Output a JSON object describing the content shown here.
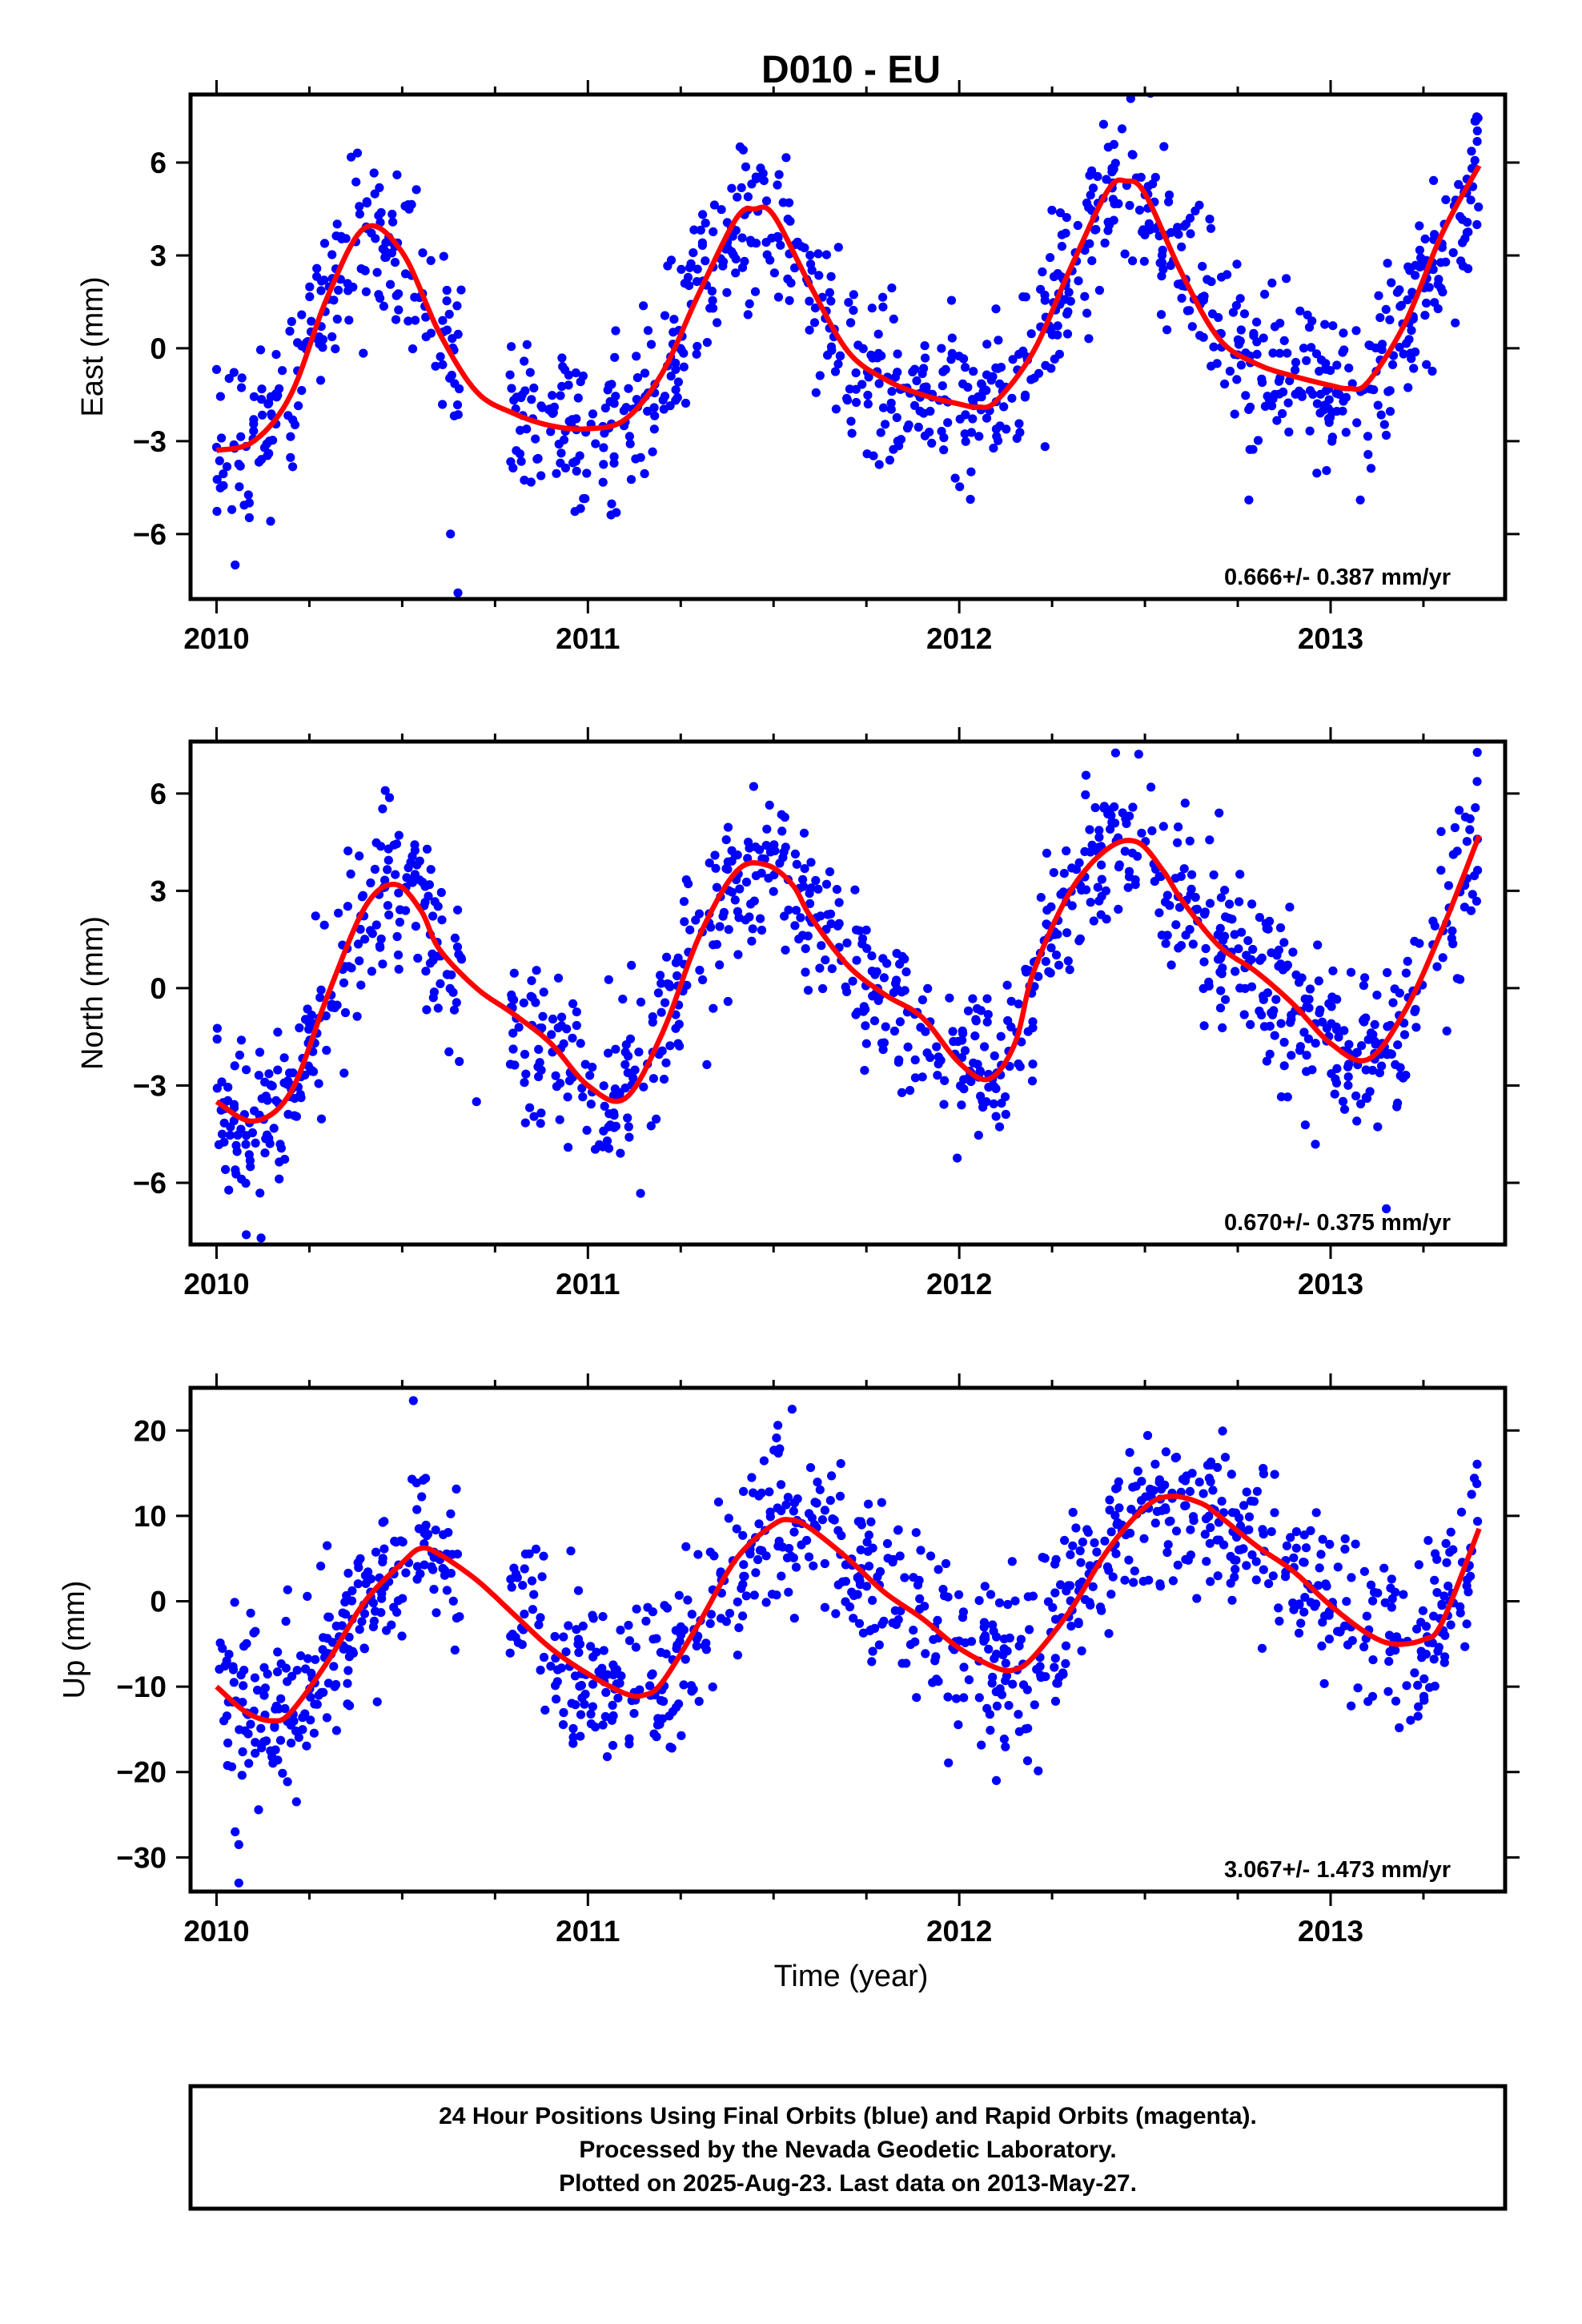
{
  "title": "D010 - EU",
  "colors": {
    "final_points": "#0000ff",
    "fit_line": "#ff0000",
    "frame": "#000000"
  },
  "xlabel": "Time (year)",
  "footer": {
    "line1": "24 Hour Positions Using Final Orbits (blue) and Rapid Orbits (magenta).",
    "line2": "Processed by the Nevada Geodetic Laboratory.",
    "line3": "Plotted on 2025-Aug-23. Last data on 2013-May-27."
  },
  "chart_data": [
    {
      "type": "scatter",
      "ylabel": "East (mm)",
      "annotation": "0.666+/- 0.387 mm/yr",
      "xlim": [
        2009.93,
        2013.47
      ],
      "ylim": [
        -8.1,
        8.2
      ],
      "xticks": [
        2010,
        2011,
        2012,
        2013
      ],
      "xtick_labels": [
        "2010",
        "2011",
        "2012",
        "2013"
      ],
      "yticks": [
        -6,
        -3,
        0,
        3,
        6
      ],
      "ytick_labels": [
        "−6",
        "−3",
        "0",
        "3",
        "6"
      ],
      "fit_line": {
        "x": [
          2010.0,
          2010.1,
          2010.2,
          2010.3,
          2010.4,
          2010.5,
          2010.6,
          2010.7,
          2010.8,
          2010.9,
          2011.0,
          2011.1,
          2011.2,
          2011.3,
          2011.4,
          2011.45,
          2011.5,
          2011.6,
          2011.7,
          2011.8,
          2011.9,
          2012.0,
          2012.05,
          2012.1,
          2012.2,
          2012.3,
          2012.4,
          2012.45,
          2012.5,
          2012.6,
          2012.7,
          2012.8,
          2012.9,
          2013.0,
          2013.05,
          2013.1,
          2013.2,
          2013.3,
          2013.4
        ],
        "y": [
          -3.3,
          -3.0,
          -1.5,
          1.7,
          3.9,
          3.1,
          0.5,
          -1.4,
          -2.1,
          -2.5,
          -2.6,
          -2.3,
          -0.8,
          1.8,
          4.2,
          4.5,
          4.3,
          2.0,
          -0.1,
          -1.0,
          -1.5,
          -1.8,
          -1.9,
          -1.7,
          -0.1,
          2.6,
          5.1,
          5.4,
          5.0,
          2.4,
          0.3,
          -0.5,
          -0.9,
          -1.2,
          -1.3,
          -1.1,
          0.8,
          3.7,
          5.9
        ]
      },
      "scatter": {
        "seed": 11,
        "count": 1100,
        "noise": 1.3,
        "outliers": [
          {
            "x": 2010.65,
            "y": -7.9
          },
          {
            "x": 2010.63,
            "y": -6.0
          },
          {
            "x": 2012.78,
            "y": -4.9
          },
          {
            "x": 2013.08,
            "y": -4.9
          },
          {
            "x": 2010.05,
            "y": -7.0
          }
        ]
      }
    },
    {
      "type": "scatter",
      "ylabel": "North (mm)",
      "annotation": "0.670+/- 0.375 mm/yr",
      "xlim": [
        2009.93,
        2013.47
      ],
      "ylim": [
        -7.9,
        7.6
      ],
      "xticks": [
        2010,
        2011,
        2012,
        2013
      ],
      "xtick_labels": [
        "2010",
        "2011",
        "2012",
        "2013"
      ],
      "yticks": [
        -6,
        -3,
        0,
        3,
        6
      ],
      "ytick_labels": [
        "−6",
        "−3",
        "0",
        "3",
        "6"
      ],
      "fit_line": {
        "x": [
          2010.0,
          2010.1,
          2010.2,
          2010.3,
          2010.4,
          2010.48,
          2010.55,
          2010.6,
          2010.7,
          2010.8,
          2010.9,
          2011.0,
          2011.1,
          2011.2,
          2011.3,
          2011.4,
          2011.48,
          2011.55,
          2011.6,
          2011.7,
          2011.8,
          2011.9,
          2012.0,
          2012.08,
          2012.15,
          2012.2,
          2012.3,
          2012.4,
          2012.48,
          2012.55,
          2012.6,
          2012.7,
          2012.8,
          2012.9,
          2013.0,
          2013.1,
          2013.2,
          2013.3,
          2013.4
        ],
        "y": [
          -3.5,
          -4.1,
          -3.2,
          -0.2,
          2.5,
          3.2,
          2.4,
          1.2,
          0.0,
          -0.8,
          -1.7,
          -3.0,
          -3.4,
          -1.4,
          1.6,
          3.6,
          3.8,
          3.2,
          2.2,
          0.7,
          -0.2,
          -0.9,
          -2.3,
          -2.8,
          -1.7,
          0.5,
          3.0,
          4.3,
          4.5,
          3.6,
          2.7,
          1.3,
          0.5,
          -0.5,
          -1.7,
          -2.2,
          -0.7,
          1.8,
          4.7
        ]
      },
      "scatter": {
        "seed": 23,
        "count": 1100,
        "noise": 1.2,
        "outliers": [
          {
            "x": 2010.08,
            "y": -7.6
          },
          {
            "x": 2010.12,
            "y": -7.7
          },
          {
            "x": 2013.15,
            "y": -6.8
          },
          {
            "x": 2010.7,
            "y": -3.5
          }
        ]
      }
    },
    {
      "type": "scatter",
      "ylabel": "Up (mm)",
      "annotation": "3.067+/- 1.473 mm/yr",
      "xlim": [
        2009.93,
        2013.47
      ],
      "ylim": [
        -34,
        25
      ],
      "xticks": [
        2010,
        2011,
        2012,
        2013
      ],
      "xtick_labels": [
        "2010",
        "2011",
        "2012",
        "2013"
      ],
      "yticks": [
        -30,
        -20,
        -10,
        0,
        10,
        20
      ],
      "ytick_labels": [
        "−30",
        "−20",
        "−10",
        "0",
        "10",
        "20"
      ],
      "fit_line": {
        "x": [
          2010.0,
          2010.08,
          2010.15,
          2010.2,
          2010.3,
          2010.4,
          2010.5,
          2010.55,
          2010.6,
          2010.7,
          2010.8,
          2010.9,
          2011.0,
          2011.1,
          2011.15,
          2011.2,
          2011.3,
          2011.4,
          2011.5,
          2011.55,
          2011.6,
          2011.7,
          2011.8,
          2011.9,
          2012.0,
          2012.1,
          2012.15,
          2012.2,
          2012.3,
          2012.4,
          2012.5,
          2012.57,
          2012.65,
          2012.7,
          2012.8,
          2012.9,
          2013.0,
          2013.1,
          2013.17,
          2013.25,
          2013.3,
          2013.4
        ],
        "y": [
          -10.0,
          -13.0,
          -14.0,
          -13.0,
          -7.0,
          0.0,
          4.5,
          6.2,
          5.5,
          2.5,
          -1.5,
          -5.5,
          -8.5,
          -10.8,
          -11.0,
          -9.5,
          -2.5,
          5.0,
          9.0,
          9.5,
          8.5,
          5.0,
          1.0,
          -2.0,
          -5.5,
          -7.8,
          -8.0,
          -6.5,
          -1.0,
          6.0,
          11.0,
          12.3,
          11.5,
          10.0,
          6.5,
          3.5,
          -0.5,
          -3.8,
          -5.0,
          -4.5,
          -2.5,
          8.5
        ]
      },
      "scatter": {
        "seed": 37,
        "count": 1100,
        "noise": 4.8,
        "outliers": [
          {
            "x": 2010.06,
            "y": -33.0
          },
          {
            "x": 2010.06,
            "y": -28.5
          },
          {
            "x": 2010.05,
            "y": -27.0
          },
          {
            "x": 2010.53,
            "y": 23.5
          },
          {
            "x": 2011.55,
            "y": 22.5
          },
          {
            "x": 2012.1,
            "y": -21.0
          }
        ]
      }
    }
  ]
}
